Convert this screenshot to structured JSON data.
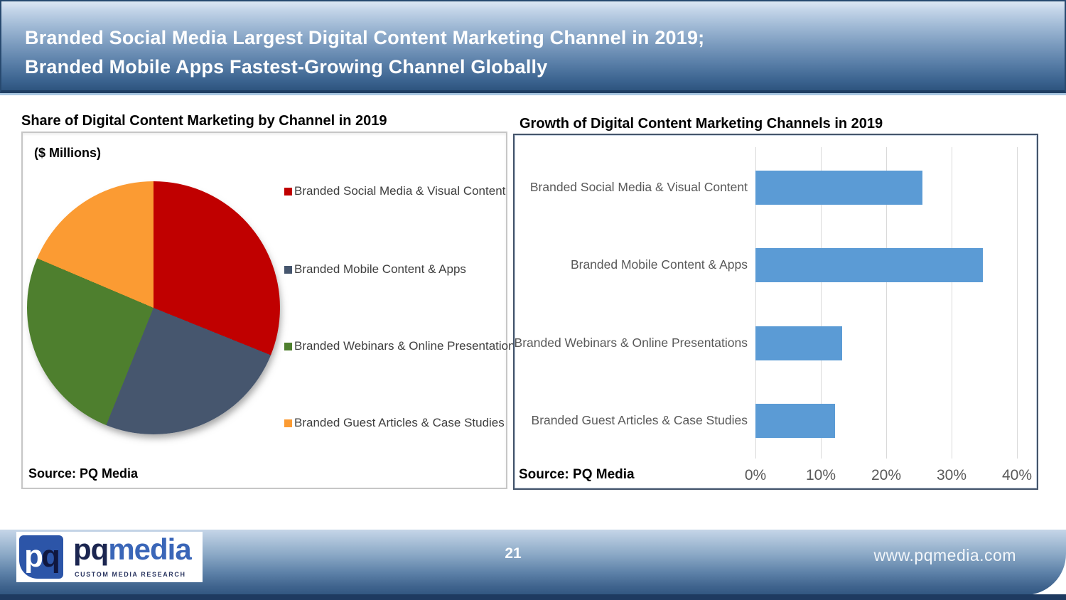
{
  "slide": {
    "header": {
      "title_line1": "Branded Social Media Largest Digital Content Marketing Channel in 2019;",
      "title_line2": "Branded Mobile Apps Fastest-Growing Channel Globally"
    },
    "footer": {
      "page_number": "21",
      "website": "www.pqmedia.com",
      "logo": {
        "mark_p": "p",
        "mark_q": "q",
        "brand_pq": "pq",
        "brand_media": "media",
        "tagline": "CUSTOM MEDIA RESEARCH"
      }
    }
  },
  "chart_data": [
    {
      "type": "pie",
      "title": "Share of Digital Content Marketing by Channel in 2019",
      "units_label": "($ Millions)",
      "source": "Source: PQ Media",
      "legend_position": "right",
      "start_angle_deg": 0,
      "direction": "clockwise",
      "categories": [
        "Branded Social Media & Visual Content",
        "Branded Mobile Content & Apps",
        "Branded Webinars & Online Presentations",
        "Branded Guest Articles & Case Studies"
      ],
      "values_pct_estimated": [
        31.1,
        25.0,
        25.3,
        18.6
      ],
      "colors": [
        "#C00000",
        "#46566E",
        "#4E7F2E",
        "#FB9B33"
      ]
    },
    {
      "type": "bar",
      "orientation": "horizontal",
      "title": "Growth of Digital Content Marketing Channels in 2019",
      "source": "Source: PQ Media",
      "categories": [
        "Branded Social Media & Visual Content",
        "Branded Mobile Content & Apps",
        "Branded Webinars & Online Presentations",
        "Branded Guest Articles & Case Studies"
      ],
      "values": [
        25.5,
        34.8,
        13.3,
        12.2
      ],
      "unit": "%",
      "xlim": [
        0,
        40
      ],
      "x_ticks": [
        "0%",
        "10%",
        "20%",
        "30%",
        "40%"
      ],
      "grid": true,
      "bar_color": "#5B9BD5"
    }
  ],
  "colors": {
    "banner_gradient_top": "#DDE8F4",
    "banner_gradient_bottom": "#2E547E",
    "banner_border": "#27496F",
    "bottom_strip_navy": "#1E3A60",
    "bar_blue": "#5B9BD5",
    "pie_red": "#C00000",
    "pie_slate": "#46566E",
    "pie_green": "#4E7F2E",
    "pie_orange": "#FB9B33",
    "logo_square_blue": "#2C55A8",
    "logo_navy": "#1B2550",
    "logo_media_blue": "#3A66B8",
    "axis_text_gray": "#595959"
  }
}
